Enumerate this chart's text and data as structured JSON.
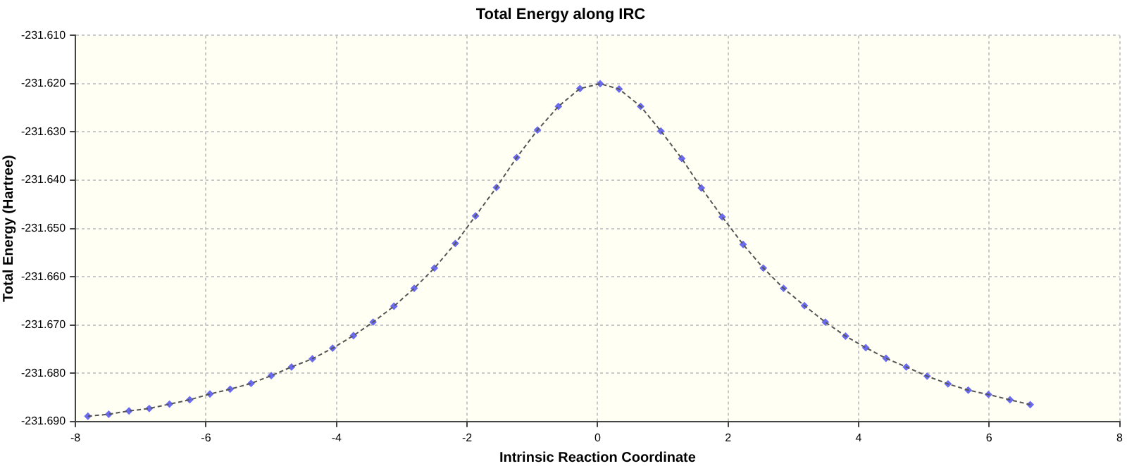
{
  "chart_data": {
    "type": "line",
    "title": "Total Energy along IRC",
    "xlabel": "Intrinsic Reaction Coordinate",
    "ylabel": "Total Energy (Hartree)",
    "x": [
      -7.81,
      -7.49,
      -7.18,
      -6.87,
      -6.56,
      -6.25,
      -5.94,
      -5.63,
      -5.31,
      -5.0,
      -4.69,
      -4.37,
      -4.06,
      -3.74,
      -3.44,
      -3.12,
      -2.81,
      -2.5,
      -2.18,
      -1.87,
      -1.55,
      -1.24,
      -0.92,
      -0.6,
      -0.27,
      0.04,
      0.33,
      0.66,
      0.97,
      1.29,
      1.59,
      1.91,
      2.23,
      2.54,
      2.85,
      3.17,
      3.49,
      3.8,
      4.11,
      4.42,
      4.73,
      5.05,
      5.37,
      5.68,
      5.99,
      6.32,
      6.63
    ],
    "series": [
      {
        "color": "#555555",
        "marker": "none",
        "line_style": "dashed",
        "values": [
          -231.6889,
          -231.6885,
          -231.6878,
          -231.6873,
          -231.6864,
          -231.6855,
          -231.6843,
          -231.6833,
          -231.6821,
          -231.6805,
          -231.6787,
          -231.677,
          -231.6748,
          -231.6722,
          -231.6694,
          -231.6661,
          -231.6624,
          -231.6582,
          -231.6531,
          -231.6474,
          -231.6415,
          -231.6353,
          -231.6296,
          -231.6247,
          -231.621,
          -231.62,
          -231.6211,
          -231.6247,
          -231.6298,
          -231.6355,
          -231.6416,
          -231.6476,
          -231.6533,
          -231.6582,
          -231.6624,
          -231.666,
          -231.6694,
          -231.6723,
          -231.6747,
          -231.6769,
          -231.6787,
          -231.6806,
          -231.6822,
          -231.6835,
          -231.6844,
          -231.6855,
          -231.6865
        ]
      },
      {
        "type": "scatter",
        "color": "#6b6bf0",
        "marker": "diamond",
        "values": [
          -231.6889,
          -231.6885,
          -231.6878,
          -231.6873,
          -231.6864,
          -231.6855,
          -231.6843,
          -231.6833,
          -231.6821,
          -231.6805,
          -231.6787,
          -231.677,
          -231.6748,
          -231.6722,
          -231.6694,
          -231.6661,
          -231.6624,
          -231.6582,
          -231.6531,
          -231.6474,
          -231.6415,
          -231.6353,
          -231.6296,
          -231.6247,
          -231.621,
          -231.62,
          -231.6211,
          -231.6247,
          -231.6298,
          -231.6355,
          -231.6416,
          -231.6476,
          -231.6533,
          -231.6582,
          -231.6624,
          -231.666,
          -231.6694,
          -231.6723,
          -231.6747,
          -231.6769,
          -231.6787,
          -231.6806,
          -231.6822,
          -231.6835,
          -231.6844,
          -231.6855,
          -231.6865
        ]
      }
    ],
    "xlim": [
      -8,
      8
    ],
    "xticks": [
      -8,
      -6,
      -4,
      -2,
      0,
      2,
      4,
      6,
      8
    ],
    "ylim": [
      -231.69,
      -231.61
    ],
    "yticks": [
      {
        "value": -231.69,
        "label": "-231.690"
      },
      {
        "value": -231.68,
        "label": "-231.680"
      },
      {
        "value": -231.67,
        "label": "-231.670"
      },
      {
        "value": -231.66,
        "label": "-231.660"
      },
      {
        "value": -231.65,
        "label": "-231.650"
      },
      {
        "value": -231.64,
        "label": "-231.640"
      },
      {
        "value": -231.63,
        "label": "-231.630"
      },
      {
        "value": -231.62,
        "label": "-231.620"
      },
      {
        "value": -231.61,
        "label": "-231.610"
      }
    ],
    "grid": true
  }
}
